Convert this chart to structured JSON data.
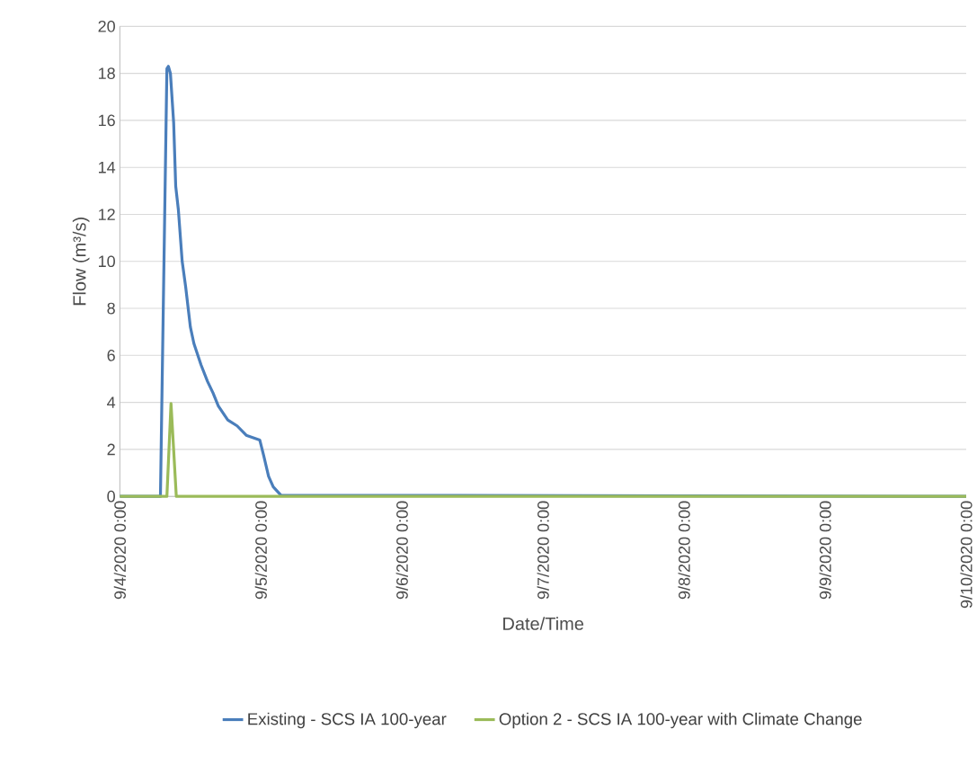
{
  "chart_data": {
    "type": "line",
    "xlabel": "Date/Time",
    "ylabel": "Flow (m³/s)",
    "xlim": [
      "2020-09-04T00:00",
      "2020-09-10T00:00"
    ],
    "xticks": [
      {
        "value": "2020-09-04T00:00",
        "label": "9/4/2020 0:00"
      },
      {
        "value": "2020-09-05T00:00",
        "label": "9/5/2020 0:00"
      },
      {
        "value": "2020-09-06T00:00",
        "label": "9/6/2020 0:00"
      },
      {
        "value": "2020-09-07T00:00",
        "label": "9/7/2020 0:00"
      },
      {
        "value": "2020-09-08T00:00",
        "label": "9/8/2020 0:00"
      },
      {
        "value": "2020-09-09T00:00",
        "label": "9/9/2020 0:00"
      },
      {
        "value": "2020-09-10T00:00",
        "label": "9/10/2020 0:00"
      }
    ],
    "ylim": [
      0,
      20
    ],
    "yticks": [
      0,
      2,
      4,
      6,
      8,
      10,
      12,
      14,
      16,
      18,
      20
    ],
    "grid": "y",
    "legend": "bottom",
    "marker": "none",
    "line_style": "solid",
    "series": [
      {
        "name": "Existing - SCS IA 100-year",
        "color": "#4a7ebb",
        "x": [
          "2020-09-04T00:00",
          "2020-09-04T06:54",
          "2020-09-04T08:00",
          "2020-09-04T08:15",
          "2020-09-04T08:36",
          "2020-09-04T09:09",
          "2020-09-04T09:30",
          "2020-09-04T09:57",
          "2020-09-04T10:36",
          "2020-09-04T11:12",
          "2020-09-04T12:00",
          "2020-09-04T12:36",
          "2020-09-04T13:48",
          "2020-09-04T14:54",
          "2020-09-04T15:51",
          "2020-09-04T16:45",
          "2020-09-04T18:21",
          "2020-09-04T19:57",
          "2020-09-04T21:30",
          "2020-09-04T23:48",
          "2020-09-05T00:30",
          "2020-09-05T01:18",
          "2020-09-05T02:06",
          "2020-09-05T03:24",
          "2020-09-10T00:00"
        ],
        "values": [
          0,
          0,
          18.2,
          18.3,
          18.0,
          15.9,
          13.2,
          12.2,
          10.0,
          8.9,
          7.2,
          6.5,
          5.6,
          4.9,
          4.4,
          3.85,
          3.25,
          3.0,
          2.6,
          2.4,
          1.7,
          0.85,
          0.4,
          0.05,
          0
        ]
      },
      {
        "name": "Option 2 - SCS IA 100-year with Climate Change",
        "color": "#9bbb59",
        "x": [
          "2020-09-04T00:00",
          "2020-09-04T08:00",
          "2020-09-04T08:42",
          "2020-09-04T09:36",
          "2020-09-10T00:00"
        ],
        "values": [
          0,
          0,
          3.95,
          0,
          0
        ]
      }
    ]
  }
}
